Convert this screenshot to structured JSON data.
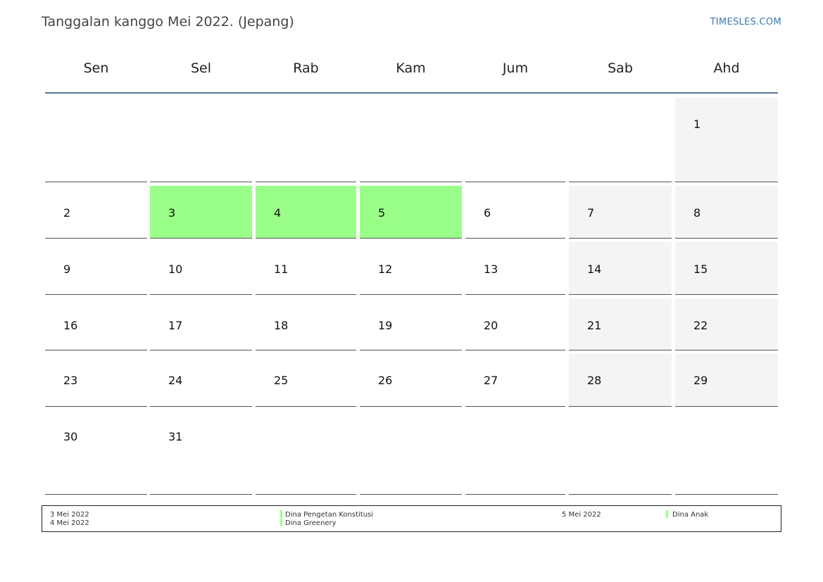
{
  "title": "Tanggalan kanggo Mei 2022. (Jepang)",
  "site": "TIMESLES.COM",
  "weekdays": [
    "Sen",
    "Sel",
    "Rab",
    "Kam",
    "Jum",
    "Sab",
    "Ahd"
  ],
  "weeks": [
    [
      "",
      "",
      "",
      "",
      "",
      "",
      "1"
    ],
    [
      "2",
      "3",
      "4",
      "5",
      "6",
      "7",
      "8"
    ],
    [
      "9",
      "10",
      "11",
      "12",
      "13",
      "14",
      "15"
    ],
    [
      "16",
      "17",
      "18",
      "19",
      "20",
      "21",
      "22"
    ],
    [
      "23",
      "24",
      "25",
      "26",
      "27",
      "28",
      "29"
    ],
    [
      "30",
      "31",
      "",
      "",
      "",
      "",
      ""
    ]
  ],
  "holiday_days": [
    "3",
    "4",
    "5"
  ],
  "colors": {
    "holiday": "#99ff88",
    "weekend": "#f4f4f4",
    "header_line": "#5a7699",
    "link": "#3a79b8"
  },
  "legend": [
    {
      "date": "3 Mei 2022",
      "name": "Dina Pengetan Konstitusi"
    },
    {
      "date": "4 Mei 2022",
      "name": "Dina Greenery"
    },
    {
      "date": "5 Mei 2022",
      "name": "Dina Anak"
    }
  ]
}
